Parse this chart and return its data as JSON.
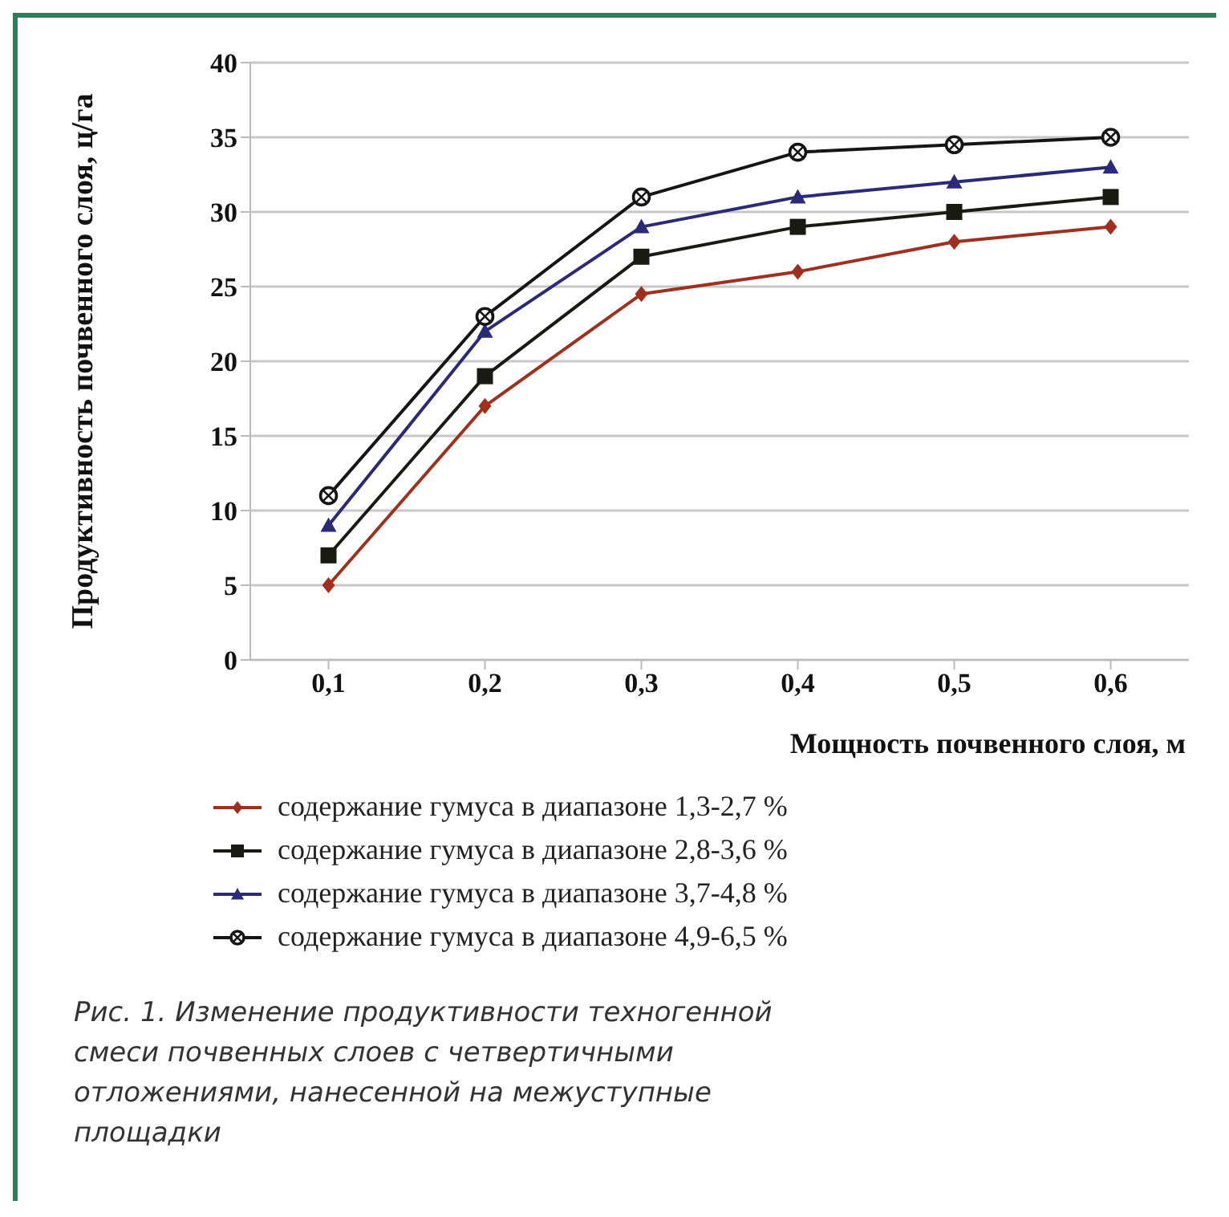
{
  "chart_data": {
    "type": "line",
    "xlabel": "Мощность почвенного слоя, м",
    "ylabel": "Продуктивность почвенного слоя, ц/га",
    "categories": [
      "0,1",
      "0,2",
      "0,3",
      "0,4",
      "0,5",
      "0,6"
    ],
    "series": [
      {
        "name": "содержание гумуса в диапазоне 1,3-2,7 %",
        "color": "#a0301e",
        "marker": "diamond",
        "values": [
          5,
          17,
          24.5,
          26,
          28,
          29
        ]
      },
      {
        "name": "содержание гумуса в диапазоне 2,8-3,6 %",
        "color": "#1a1a14",
        "marker": "square",
        "values": [
          7,
          19,
          27,
          29,
          30,
          31
        ]
      },
      {
        "name": "содержание гумуса в диапазоне 3,7-4,8 %",
        "color": "#2a2a78",
        "marker": "triangle",
        "values": [
          9,
          22,
          29,
          31,
          32,
          33
        ]
      },
      {
        "name": "содержание гумуса в диапазоне 4,9-6,5 %",
        "color": "#151515",
        "marker": "circle",
        "values": [
          11,
          23,
          31,
          34,
          34.5,
          35
        ]
      }
    ],
    "ylim": [
      0,
      40
    ],
    "yticks": [
      0,
      5,
      10,
      15,
      20,
      25,
      30,
      35,
      40
    ],
    "grid": "y",
    "legend": "bottom",
    "annotations": [
      "Рис. 1. Изменение продуктивности техногенной смеси почвенных слоев с четвертичными отложениями, нанесенной на межуступные площадки"
    ]
  }
}
